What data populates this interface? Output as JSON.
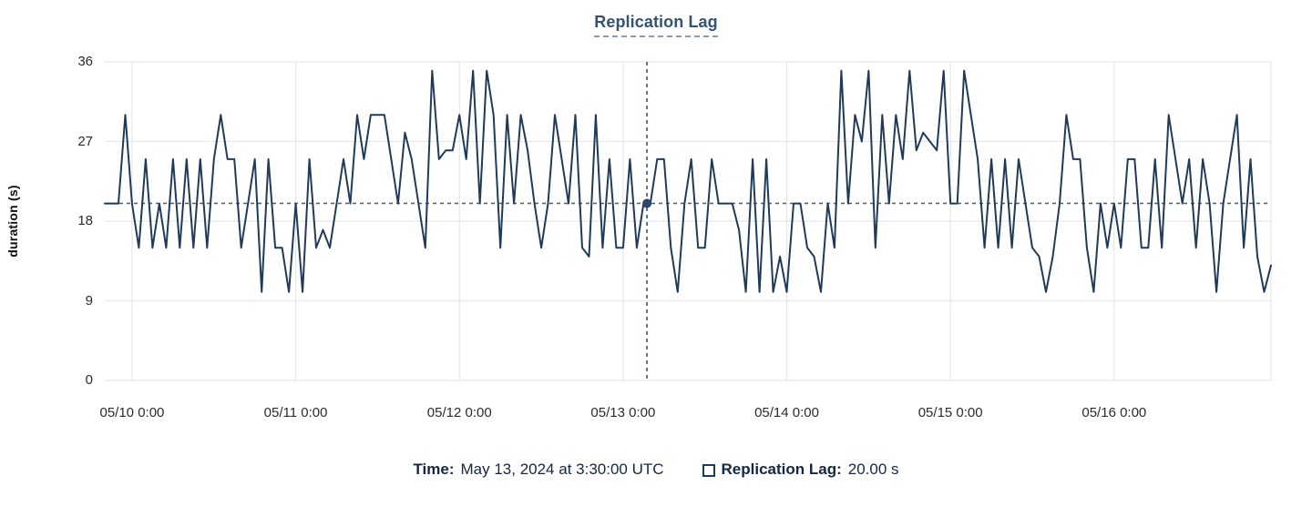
{
  "title": "Replication Lag",
  "tooltip": {
    "time_label": "Time:",
    "time_value": "May 13, 2024 at 3:30:00 UTC",
    "series_label": "Replication Lag:",
    "series_value": "20.00 s"
  },
  "colors": {
    "line": "#203a5a",
    "dot": "#2b4866",
    "crosshair": "#41607a",
    "grid": "#e8e8e8",
    "title": "#33536e",
    "text": "#152743"
  },
  "chart_data": {
    "type": "line",
    "title": "Replication Lag",
    "xlabel": "",
    "ylabel": "duration (s)",
    "ylim": [
      0,
      36
    ],
    "grid": true,
    "legend_position": "top",
    "y_ticks": [
      36,
      27,
      18,
      9,
      0
    ],
    "x_ticks": [
      {
        "label": "05/10 0:00",
        "index": 4
      },
      {
        "label": "05/11 0:00",
        "index": 28
      },
      {
        "label": "05/12 0:00",
        "index": 52
      },
      {
        "label": "05/13 0:00",
        "index": 76
      },
      {
        "label": "05/14 0:00",
        "index": 100
      },
      {
        "label": "05/15 0:00",
        "index": 124
      },
      {
        "label": "05/16 0:00",
        "index": 148
      }
    ],
    "start_time": "05/09 20:00",
    "interval_hours": 1,
    "series_name": "Replication Lag",
    "unit": "s",
    "values": [
      20,
      20,
      20,
      30,
      20,
      15,
      25,
      15,
      20,
      15,
      25,
      15,
      25,
      15,
      25,
      15,
      25,
      30,
      25,
      25,
      15,
      20,
      25,
      10,
      25,
      15,
      15,
      10,
      20,
      10,
      25,
      15,
      17,
      15,
      20,
      25,
      20,
      30,
      25,
      30,
      30,
      30,
      25,
      20,
      28,
      25,
      20,
      15,
      35,
      25,
      26,
      26,
      30,
      25,
      35,
      20,
      35,
      30,
      15,
      30,
      20,
      30,
      26,
      20,
      15,
      20,
      30,
      25,
      20,
      30,
      15,
      14,
      30,
      15,
      25,
      15,
      15,
      25,
      15,
      20,
      20,
      25,
      25,
      15,
      10,
      20,
      25,
      15,
      15,
      25,
      20,
      20,
      20,
      17,
      10,
      25,
      10,
      25,
      10,
      14,
      10,
      20,
      20,
      15,
      14,
      10,
      20,
      15,
      35,
      20,
      30,
      27,
      35,
      15,
      30,
      20,
      30,
      25,
      35,
      26,
      28,
      27,
      26,
      35,
      20,
      20,
      35,
      30,
      25,
      15,
      25,
      15,
      25,
      15,
      25,
      20,
      15,
      14,
      10,
      14,
      20,
      30,
      25,
      25,
      15,
      10,
      20,
      15,
      20,
      15,
      25,
      25,
      15,
      15,
      25,
      15,
      30,
      25,
      20,
      25,
      15,
      25,
      20,
      10,
      20,
      25,
      30,
      15,
      25,
      14,
      10,
      13
    ],
    "crosshair": {
      "x_index": 79.5,
      "value": 20,
      "time": "May 13, 2024 at 3:30:00 UTC",
      "value_label": "20.00 s"
    }
  }
}
